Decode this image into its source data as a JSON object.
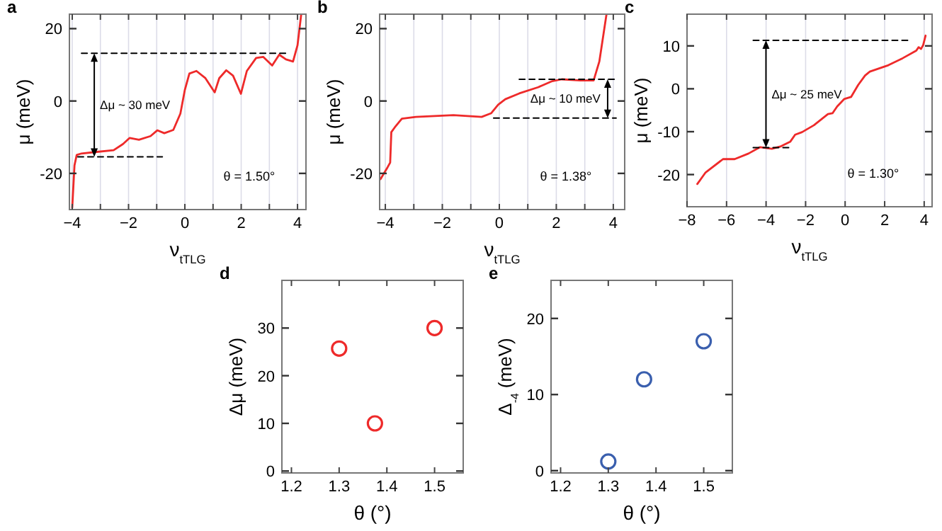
{
  "chart_data": [
    {
      "type": "line",
      "title": "a",
      "xlabel": "ν$_{tTLG}$",
      "ylabel": "μ (meV)",
      "xlim": [
        -4.1,
        4.3
      ],
      "ylim": [
        -30,
        24
      ],
      "xticks": [
        -4,
        {
          "value": -3,
          "label": null
        },
        -2,
        {
          "value": -1,
          "label": null
        },
        0,
        {
          "value": 1,
          "label": null
        },
        2,
        {
          "value": 3,
          "label": null
        },
        4
      ],
      "yticks": [
        -20,
        0,
        20
      ],
      "grid": "x",
      "series": [
        {
          "color": "#ee2a2a",
          "line_style": "solid",
          "x": [
            -4.0,
            -3.92,
            -3.84,
            -3.67,
            -3.18,
            -2.53,
            -2.2,
            -1.96,
            -1.63,
            -1.22,
            -0.98,
            -0.73,
            -0.41,
            -0.16,
            0,
            0.16,
            0.41,
            0.73,
            1.06,
            1.22,
            1.47,
            1.71,
            1.99,
            2.2,
            2.53,
            2.78,
            3.1,
            3.35,
            3.59,
            3.84,
            4.0,
            4.13
          ],
          "values": [
            -29.5,
            -17.8,
            -14.9,
            -14.5,
            -14.1,
            -13.6,
            -11.9,
            -10.2,
            -10.7,
            -9.7,
            -8.1,
            -8.9,
            -8.0,
            -3.5,
            3.1,
            7.6,
            8.3,
            6.3,
            2.4,
            6.3,
            8.5,
            7.0,
            2.0,
            8.3,
            11.9,
            12.2,
            9.8,
            12.8,
            11.5,
            10.9,
            15.4,
            23.9
          ]
        },
        {
          "color": "#000000",
          "line_style": "dashed",
          "x": [
            -3.67,
            3.67
          ],
          "values": [
            13.2,
            13.2
          ]
        },
        {
          "color": "#000000",
          "line_style": "dashed",
          "x": [
            -3.8,
            -0.8
          ],
          "values": [
            -15.4,
            -15.4
          ]
        }
      ],
      "annotations": [
        "Δμ ~ 30 meV",
        "θ = 1.50°"
      ]
    },
    {
      "type": "line",
      "title": "b",
      "xlabel": "ν$_{tTLG}$",
      "ylabel": "μ (meV)",
      "xlim": [
        -4.2,
        4.4
      ],
      "ylim": [
        -30,
        24
      ],
      "xticks": [
        -4,
        {
          "value": -3,
          "label": null
        },
        -2,
        {
          "value": -1,
          "label": null
        },
        0,
        {
          "value": 1,
          "label": null
        },
        2,
        {
          "value": 3,
          "label": null
        },
        4
      ],
      "yticks": [
        -20,
        0,
        20
      ],
      "grid": "x",
      "series": [
        {
          "color": "#ee2a2a",
          "line_style": "solid",
          "x": [
            -4.17,
            -3.92,
            -3.83,
            -3.79,
            -3.67,
            -3.42,
            -2.93,
            -1.61,
            -0.62,
            -0.29,
            -0.04,
            0.21,
            0.7,
            1.36,
            1.86,
            2.19,
            2.85,
            3.31,
            3.51,
            3.76
          ],
          "values": [
            -21.6,
            -18.3,
            -17.0,
            -8.6,
            -7.3,
            -4.9,
            -4.4,
            -3.9,
            -4.4,
            -3.4,
            -1.0,
            0.5,
            2.1,
            3.8,
            5.5,
            6.0,
            5.7,
            5.7,
            10.9,
            23.9
          ]
        },
        {
          "color": "#000000",
          "line_style": "dashed",
          "x": [
            0.7,
            4.1
          ],
          "values": [
            6.0,
            6.0
          ]
        },
        {
          "color": "#000000",
          "line_style": "dashed",
          "x": [
            -0.2,
            4.1
          ],
          "values": [
            -4.7,
            -4.7
          ]
        }
      ],
      "annotations": [
        "Δμ ~ 10 meV",
        "θ = 1.38°"
      ]
    },
    {
      "type": "line",
      "title": "c",
      "xlabel": "ν$_{tTLG}$",
      "ylabel": "μ (meV)",
      "xlim": [
        -8,
        4.4
      ],
      "ylim": [
        -27.5,
        17.4
      ],
      "xticks": [
        -8,
        -6,
        -4,
        -2,
        0,
        2,
        4
      ],
      "yticks": [
        -20,
        -10,
        0,
        10
      ],
      "grid": "x",
      "series": [
        {
          "color": "#ee2a2a",
          "line_style": "solid",
          "x": [
            -7.48,
            -7.06,
            -6.18,
            -5.59,
            -4.89,
            -4.3,
            -3.71,
            -3.24,
            -2.77,
            -2.53,
            -2.18,
            -1.58,
            -0.87,
            -0.64,
            -0.4,
            -0.05,
            0.3,
            0.66,
            1.01,
            1.25,
            2.19,
            2.9,
            3.6,
            3.72,
            3.84,
            3.95,
            4.07
          ],
          "values": [
            -22.2,
            -19.5,
            -16.4,
            -16.4,
            -15.1,
            -13.6,
            -14.0,
            -13.4,
            -12.3,
            -10.7,
            -10.1,
            -8.5,
            -5.9,
            -5.7,
            -4.1,
            -2.4,
            -1.9,
            0.9,
            3.1,
            4.0,
            5.5,
            7.1,
            8.9,
            9.7,
            9.3,
            10.2,
            12.4
          ]
        },
        {
          "color": "#000000",
          "line_style": "dashed",
          "x": [
            -4.65,
            3.37
          ],
          "values": [
            11.3,
            11.3
          ]
        },
        {
          "color": "#000000",
          "line_style": "dashed",
          "x": [
            -4.65,
            -2.65
          ],
          "values": [
            -13.7,
            -13.7
          ]
        }
      ],
      "annotations": [
        "Δμ ~ 25 meV",
        "θ = 1.30°"
      ]
    },
    {
      "type": "scatter",
      "title": "d",
      "xlabel": "θ (°)",
      "ylabel": "Δμ  (meV)",
      "xlim": [
        1.18,
        1.56
      ],
      "ylim": [
        -0.4,
        40
      ],
      "xticks": [
        1.2,
        1.3,
        1.4,
        1.5
      ],
      "yticks": [
        0,
        10,
        20,
        30
      ],
      "grid": false,
      "marker": "circle",
      "series": [
        {
          "color": "#ee2a2a",
          "x": [
            1.3,
            1.375,
            1.5
          ],
          "values": [
            25.7,
            10,
            30
          ]
        }
      ]
    },
    {
      "type": "scatter",
      "title": "e",
      "xlabel": "θ (°)",
      "ylabel": "Δ$_{-4}$ (meV)",
      "xlim": [
        1.18,
        1.56
      ],
      "ylim": [
        -0.3,
        25
      ],
      "xticks": [
        1.2,
        1.3,
        1.4,
        1.5
      ],
      "yticks": [
        0,
        10,
        20
      ],
      "grid": false,
      "marker": "circle",
      "series": [
        {
          "color": "#3a5fae",
          "x": [
            1.3,
            1.375,
            1.5
          ],
          "values": [
            1.2,
            12,
            17
          ]
        }
      ]
    }
  ]
}
